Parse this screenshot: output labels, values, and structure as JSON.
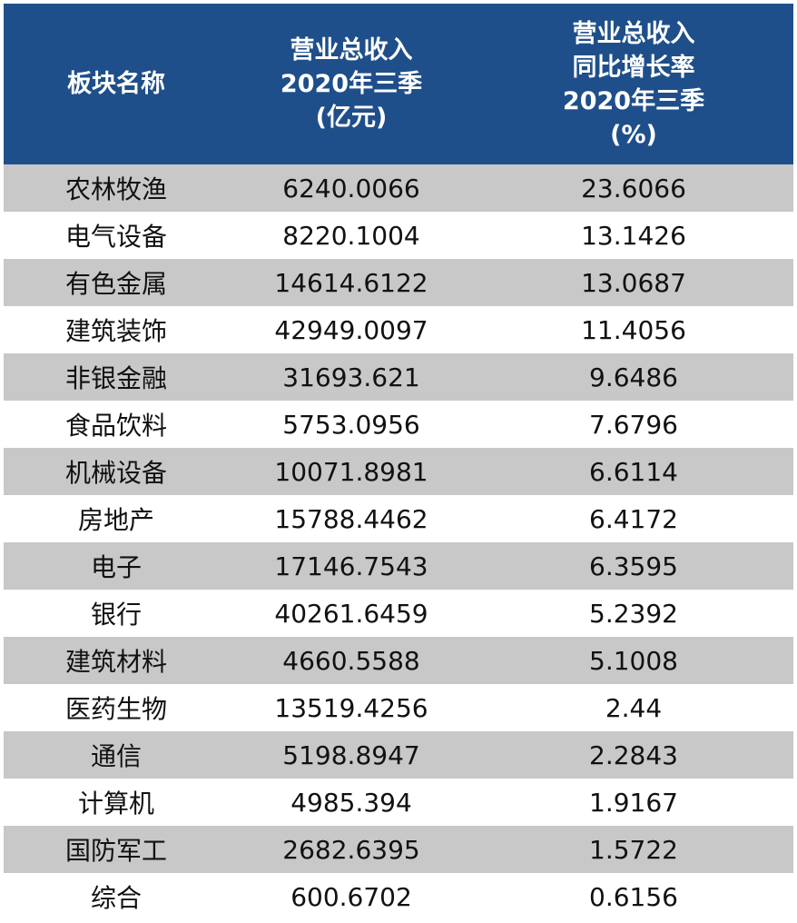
{
  "table": {
    "headers": {
      "col1": [
        "板块名称"
      ],
      "col2": [
        "营业总收入",
        "2020年三季",
        "(亿元)"
      ],
      "col3": [
        "营业总收入",
        "同比增长率",
        "2020年三季",
        "(%)"
      ]
    },
    "rows": [
      {
        "name": "农林牧渔",
        "revenue": "6240.0066",
        "growth": "23.6066"
      },
      {
        "name": "电气设备",
        "revenue": "8220.1004",
        "growth": "13.1426"
      },
      {
        "name": "有色金属",
        "revenue": "14614.6122",
        "growth": "13.0687"
      },
      {
        "name": "建筑装饰",
        "revenue": "42949.0097",
        "growth": "11.4056"
      },
      {
        "name": "非银金融",
        "revenue": "31693.621",
        "growth": "9.6486"
      },
      {
        "name": "食品饮料",
        "revenue": "5753.0956",
        "growth": "7.6796"
      },
      {
        "name": "机械设备",
        "revenue": "10071.8981",
        "growth": "6.6114"
      },
      {
        "name": "房地产",
        "revenue": "15788.4462",
        "growth": "6.4172"
      },
      {
        "name": "电子",
        "revenue": "17146.7543",
        "growth": "6.3595"
      },
      {
        "name": "银行",
        "revenue": "40261.6459",
        "growth": "5.2392"
      },
      {
        "name": "建筑材料",
        "revenue": "4660.5588",
        "growth": "5.1008"
      },
      {
        "name": "医药生物",
        "revenue": "13519.4256",
        "growth": "2.44"
      },
      {
        "name": "通信",
        "revenue": "5198.8947",
        "growth": "2.2843"
      },
      {
        "name": "计算机",
        "revenue": "4985.394",
        "growth": "1.9167"
      },
      {
        "name": "国防军工",
        "revenue": "2682.6395",
        "growth": "1.5722"
      },
      {
        "name": "综合",
        "revenue": "600.6702",
        "growth": "0.6156"
      }
    ]
  },
  "colors": {
    "header_bg": "#1f4f8a",
    "header_text": "#ffffff",
    "row_shade": "#c8c8c8",
    "row_plain": "#ffffff"
  }
}
